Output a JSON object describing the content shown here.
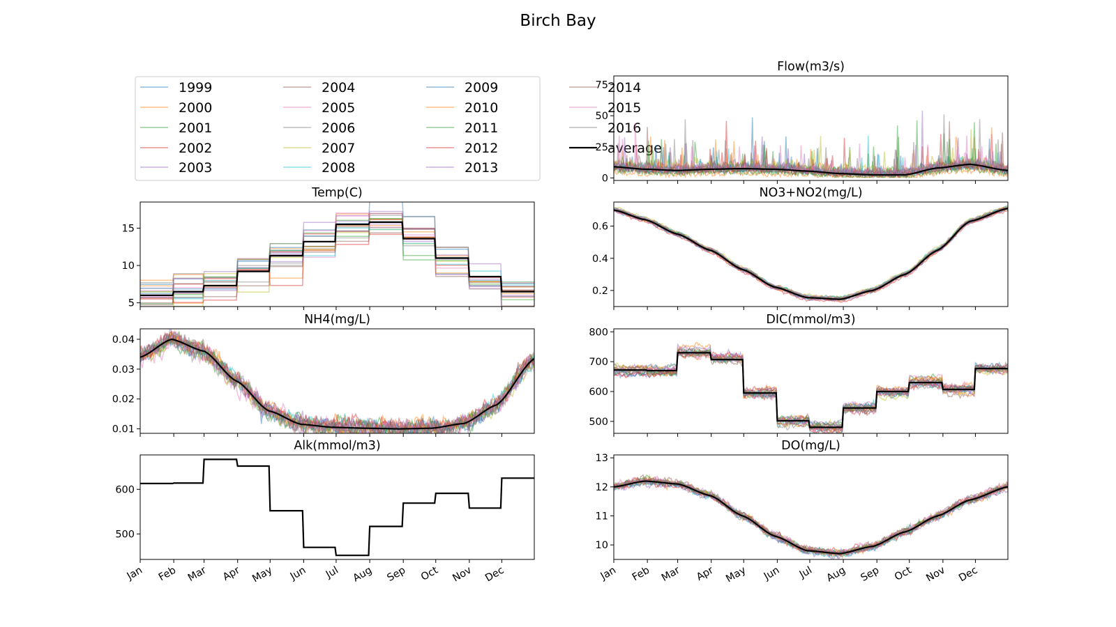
{
  "figure": {
    "title": "Birch Bay",
    "months": [
      "Jan",
      "Feb",
      "Mar",
      "Apr",
      "May",
      "Jun",
      "Jul",
      "Aug",
      "Sep",
      "Oct",
      "Nov",
      "Dec"
    ],
    "years": [
      "1999",
      "2000",
      "2001",
      "2002",
      "2003",
      "2004",
      "2005",
      "2006",
      "2007",
      "2008",
      "2009",
      "2010",
      "2011",
      "2012",
      "2013",
      "2014",
      "2015",
      "2016"
    ],
    "average_label": "average",
    "year_colors": [
      "#1f77b4",
      "#ff7f0e",
      "#2ca02c",
      "#d62728",
      "#9467bd",
      "#8c564b",
      "#e377c2",
      "#7f7f7f",
      "#bcbd22",
      "#17becf",
      "#1f77b4",
      "#ff7f0e",
      "#2ca02c",
      "#d62728",
      "#9467bd",
      "#8c564b",
      "#e377c2",
      "#7f7f7f"
    ],
    "average_color": "#000000"
  },
  "chart_data": [
    {
      "id": "temp",
      "type": "line",
      "title": "Temp(C)",
      "ylim": [
        4.5,
        18.5
      ],
      "yticks": [
        5,
        10,
        15
      ],
      "pattern": "monthly_step",
      "average_monthly": [
        6.0,
        6.5,
        7.3,
        9.2,
        11.3,
        13.2,
        15.5,
        15.8,
        13.6,
        11.0,
        8.5,
        6.5
      ],
      "year_spread": 1.5,
      "noise": 0
    },
    {
      "id": "nh4",
      "type": "line",
      "title": "NH4(mg/L)",
      "ylim": [
        0.0085,
        0.0435
      ],
      "yticks": [
        0.01,
        0.02,
        0.03,
        0.04
      ],
      "pattern": "smooth",
      "average_knots_doy": [
        1,
        30,
        60,
        90,
        120,
        150,
        180,
        210,
        240,
        270,
        300,
        330,
        365
      ],
      "average_knots": [
        0.034,
        0.04,
        0.036,
        0.026,
        0.016,
        0.0115,
        0.0105,
        0.0102,
        0.01,
        0.0102,
        0.0118,
        0.018,
        0.0335
      ],
      "year_spread": 0.0006,
      "noise": 0.0025
    },
    {
      "id": "alk",
      "type": "line",
      "title": "Alk(mmol/m3)",
      "ylim": [
        443,
        677
      ],
      "yticks": [
        500,
        600
      ],
      "pattern": "monthly_step",
      "average_only": true,
      "average_monthly": [
        613,
        614,
        667,
        652,
        552,
        470,
        452,
        517,
        569,
        591,
        558,
        625
      ],
      "year_spread": 0,
      "noise": 0
    },
    {
      "id": "flow",
      "type": "line",
      "title": "Flow(m3/s)",
      "ylim": [
        -2,
        82
      ],
      "yticks": [
        0,
        25,
        50,
        75
      ],
      "pattern": "smooth",
      "average_knots_doy": [
        1,
        30,
        60,
        90,
        120,
        150,
        180,
        210,
        240,
        270,
        300,
        330,
        365
      ],
      "average_knots": [
        9,
        7,
        6,
        7,
        7.5,
        7,
        5.5,
        3.5,
        2.5,
        2.5,
        8,
        11,
        6
      ],
      "year_spread": 2,
      "noise": 6,
      "spiky": true
    },
    {
      "id": "no3",
      "type": "line",
      "title": "NO3+NO2(mg/L)",
      "ylim": [
        0.1,
        0.75
      ],
      "yticks": [
        0.2,
        0.4,
        0.6
      ],
      "pattern": "smooth",
      "average_knots_doy": [
        1,
        30,
        60,
        90,
        120,
        150,
        180,
        210,
        240,
        270,
        300,
        330,
        365
      ],
      "average_knots": [
        0.7,
        0.64,
        0.55,
        0.45,
        0.33,
        0.22,
        0.155,
        0.145,
        0.2,
        0.3,
        0.45,
        0.63,
        0.71
      ],
      "year_spread": 0.008,
      "noise": 0.008
    },
    {
      "id": "dic",
      "type": "line",
      "title": "DIC(mmol/m3)",
      "ylim": [
        460,
        810
      ],
      "yticks": [
        500,
        600,
        700,
        800
      ],
      "pattern": "monthly_step",
      "average_monthly": [
        672,
        670,
        730,
        707,
        595,
        502,
        480,
        545,
        600,
        630,
        607,
        677
      ],
      "year_spread": 8,
      "noise": 10
    },
    {
      "id": "do",
      "type": "line",
      "title": "DO(mg/L)",
      "ylim": [
        9.5,
        13.1
      ],
      "yticks": [
        10,
        11,
        12,
        13
      ],
      "pattern": "smooth",
      "average_knots_doy": [
        1,
        30,
        60,
        90,
        120,
        150,
        180,
        210,
        240,
        270,
        300,
        330,
        365
      ],
      "average_knots": [
        12.0,
        12.2,
        12.1,
        11.7,
        11.0,
        10.3,
        9.8,
        9.7,
        9.95,
        10.45,
        11.0,
        11.55,
        12.0
      ],
      "year_spread": 0.04,
      "noise": 0.1
    }
  ]
}
